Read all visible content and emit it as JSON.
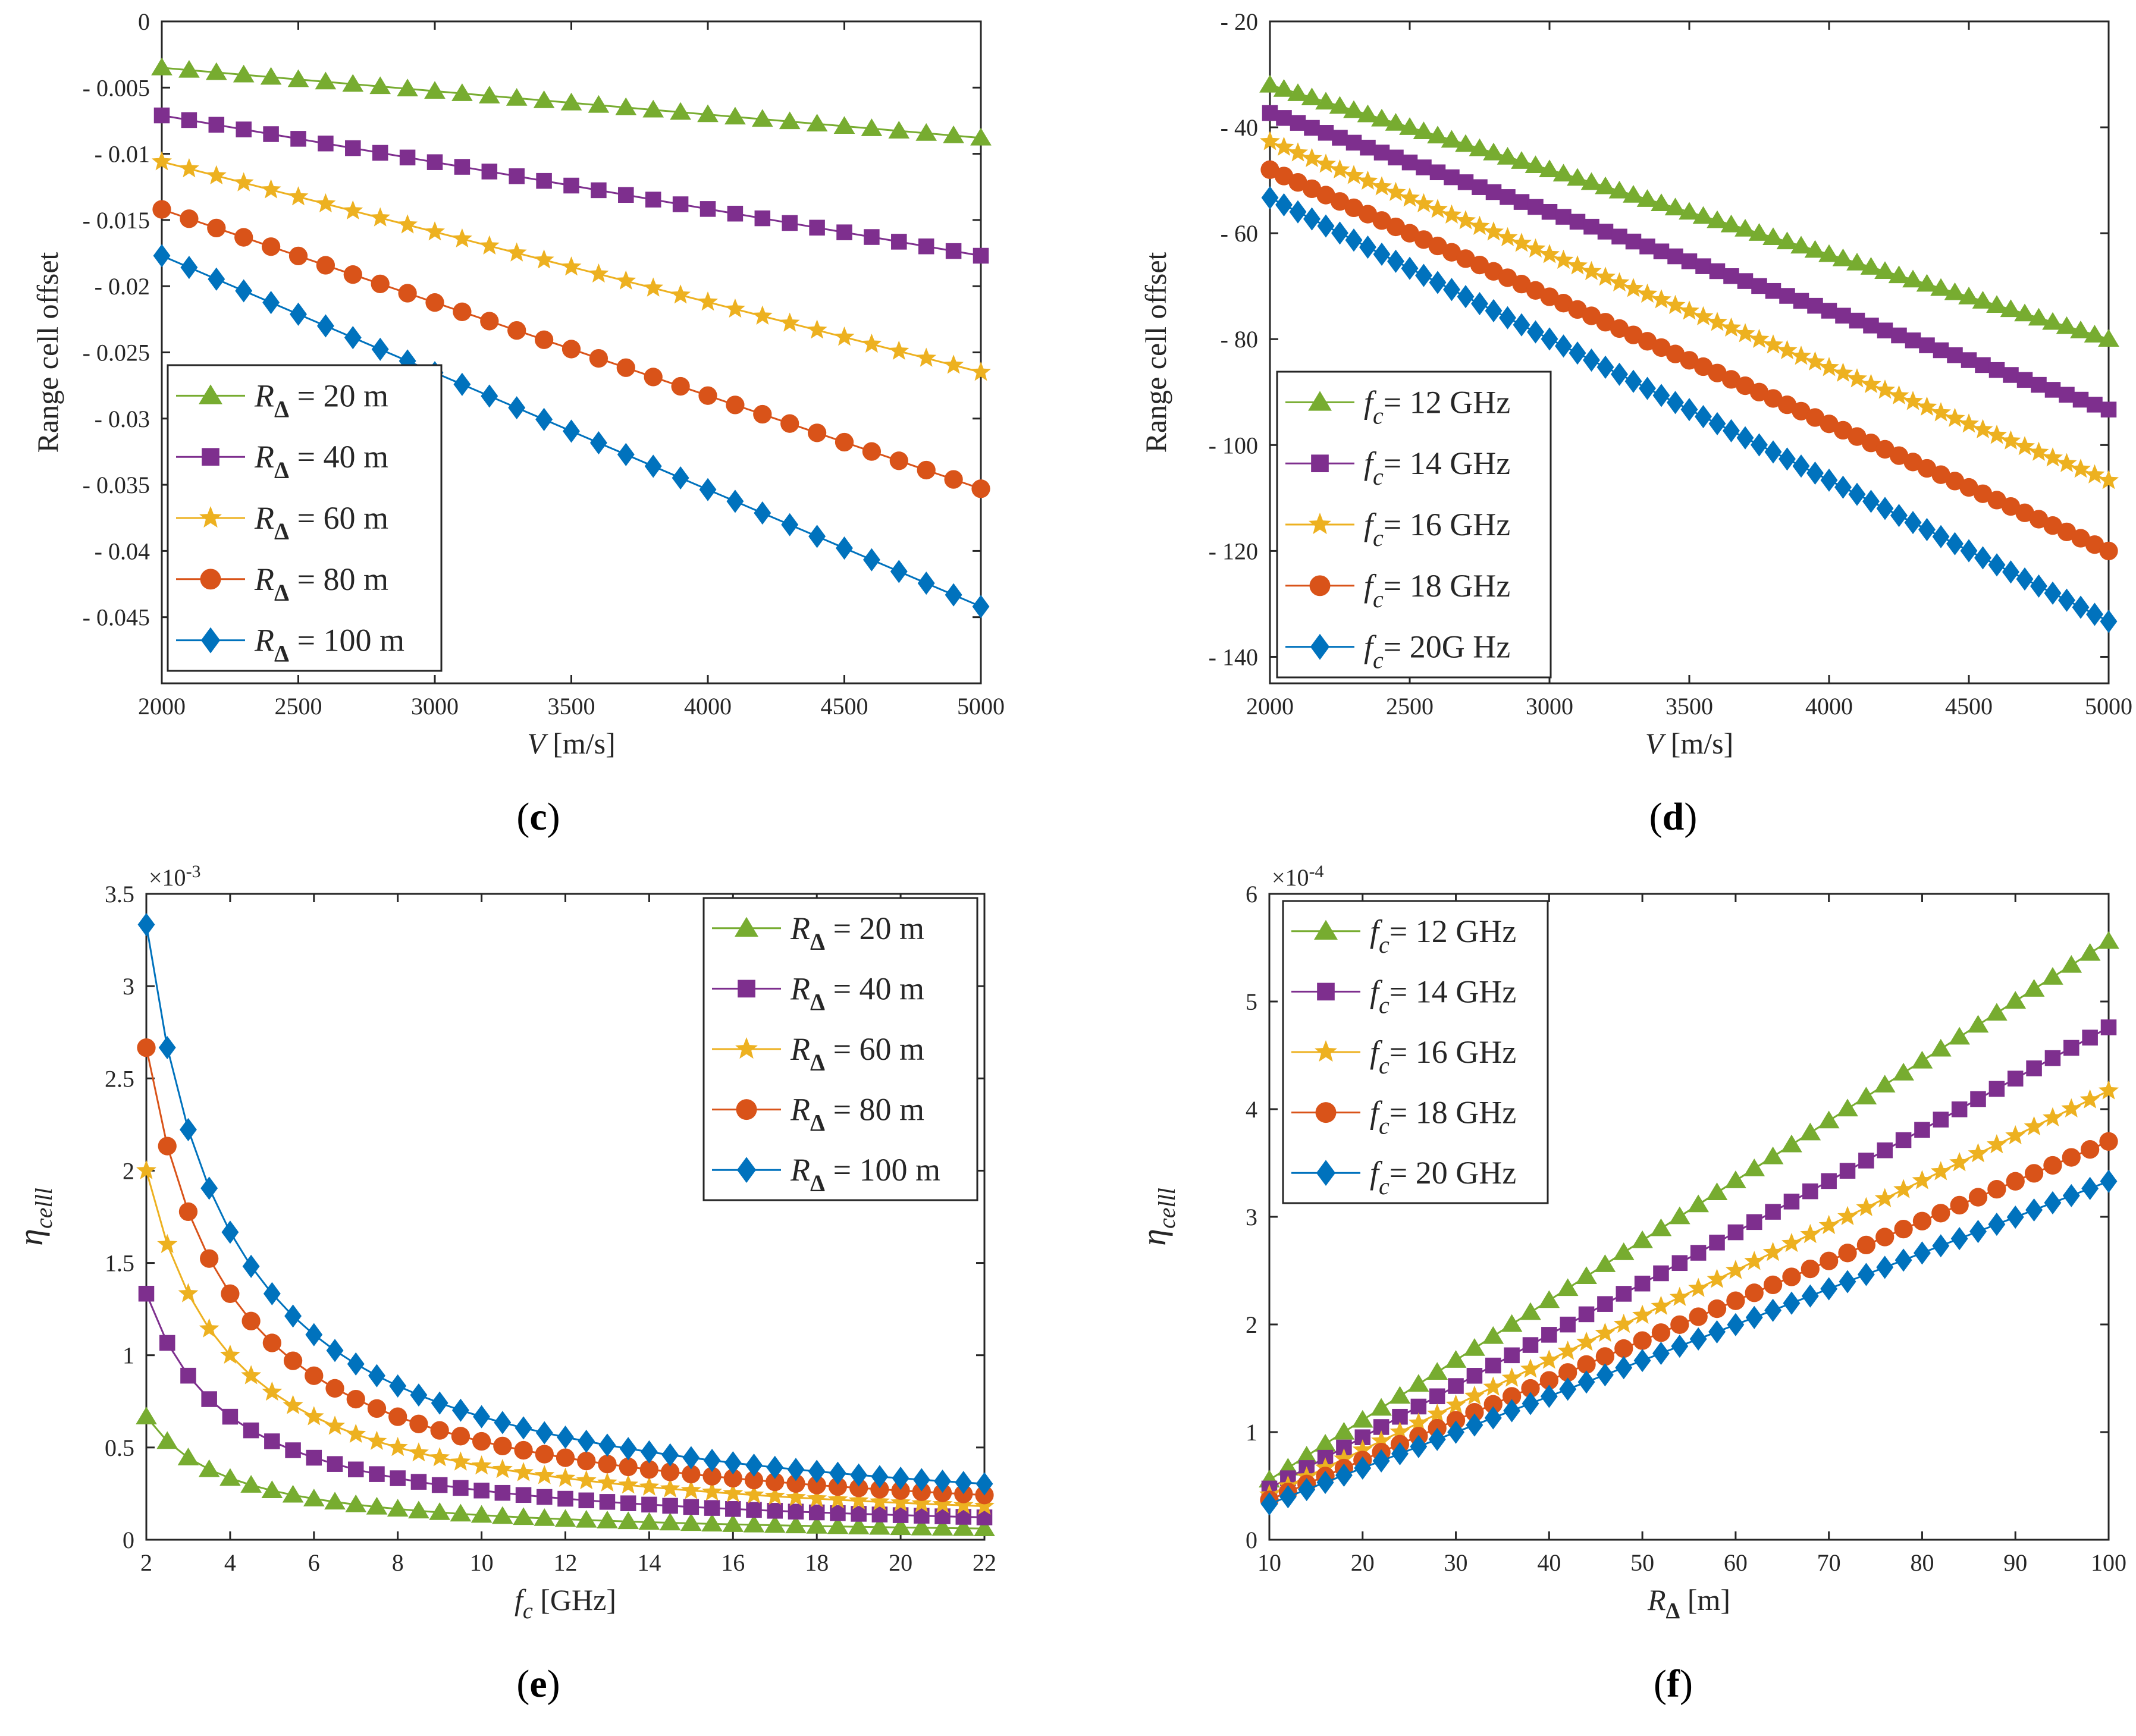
{
  "colors": {
    "green": "#77ac30",
    "purple": "#7e2f8e",
    "yellow": "#edb120",
    "orange": "#d95319",
    "blue": "#0072bd",
    "axis": "#262626"
  },
  "chart_data": [
    {
      "id": "c",
      "type": "line",
      "panel_label": "c",
      "xlabel_var": "V",
      "xlabel_unit": " [m/s]",
      "ylabel": "Range cell offset",
      "xlim": [
        2000,
        5000
      ],
      "ylim": [
        -0.05,
        0
      ],
      "xticks": [
        2000,
        2500,
        3000,
        3500,
        4000,
        4500,
        5000
      ],
      "xtick_labels": [
        "2000",
        "2500",
        "3000",
        "3500",
        "4000",
        "4500",
        "5000"
      ],
      "yticks": [
        0,
        -0.005,
        -0.01,
        -0.015,
        -0.02,
        -0.025,
        -0.03,
        -0.035,
        -0.04,
        -0.045
      ],
      "ytick_labels": [
        "0",
        "- 0.005",
        "- 0.01",
        "- 0.015",
        "- 0.02",
        "- 0.025",
        "- 0.03",
        "- 0.035",
        "- 0.04",
        "- 0.045"
      ],
      "exponent": "",
      "x": {
        "start": 2000,
        "end": 5000,
        "count": 31
      },
      "legend": "lower-left",
      "series": [
        {
          "name": "R_Δ = 20 m",
          "lab_var": "R",
          "lab_sub": "Δ",
          "lab_rest": " = 20 m",
          "color": "green",
          "marker": "triangle",
          "curve": "linear",
          "start": -0.0035,
          "end": -0.0088
        },
        {
          "name": "R_Δ = 40 m",
          "lab_var": "R",
          "lab_sub": "Δ",
          "lab_rest": " = 40 m",
          "color": "purple",
          "marker": "square",
          "curve": "linear",
          "start": -0.0071,
          "end": -0.0177
        },
        {
          "name": "R_Δ = 60 m",
          "lab_var": "R",
          "lab_sub": "Δ",
          "lab_rest": " = 60 m",
          "color": "yellow",
          "marker": "star",
          "curve": "linear",
          "start": -0.0106,
          "end": -0.0265
        },
        {
          "name": "R_Δ = 80 m",
          "lab_var": "R",
          "lab_sub": "Δ",
          "lab_rest": " = 80 m",
          "color": "orange",
          "marker": "circle",
          "curve": "linear",
          "start": -0.0142,
          "end": -0.0353
        },
        {
          "name": "R_Δ = 100 m",
          "lab_var": "R",
          "lab_sub": "Δ",
          "lab_rest": " = 100 m",
          "color": "blue",
          "marker": "diamond",
          "curve": "linear",
          "start": -0.0177,
          "end": -0.0442
        }
      ]
    },
    {
      "id": "d",
      "type": "line",
      "panel_label": "d",
      "xlabel_var": "V",
      "xlabel_unit": " [m/s]",
      "ylabel": "Range cell offset",
      "xlim": [
        2000,
        5000
      ],
      "ylim": [
        -145,
        -20
      ],
      "xticks": [
        2000,
        2500,
        3000,
        3500,
        4000,
        4500,
        5000
      ],
      "xtick_labels": [
        "2000",
        "2500",
        "3000",
        "3500",
        "4000",
        "4500",
        "5000"
      ],
      "yticks": [
        -20,
        -40,
        -60,
        -80,
        -100,
        -120,
        -140
      ],
      "ytick_labels": [
        "- 20",
        "- 40",
        "- 60",
        "- 80",
        "- 100",
        "- 120",
        "- 140"
      ],
      "exponent": "",
      "x": {
        "start": 2000,
        "end": 5000,
        "count": 61
      },
      "legend": "lower-left",
      "series": [
        {
          "name": "f_c = 12 GHz",
          "lab_var": "f",
          "lab_sub": "c",
          "lab_rest": "= 12 GHz",
          "color": "green",
          "marker": "triangle",
          "curve": "linear",
          "start": -32,
          "end": -80
        },
        {
          "name": "f_c = 14 GHz",
          "lab_var": "f",
          "lab_sub": "c",
          "lab_rest": "= 14 GHz",
          "color": "purple",
          "marker": "square",
          "curve": "linear",
          "start": -37.3,
          "end": -93.3
        },
        {
          "name": "f_c = 16 GHz",
          "lab_var": "f",
          "lab_sub": "c",
          "lab_rest": "= 16 GHz",
          "color": "yellow",
          "marker": "star",
          "curve": "linear",
          "start": -42.7,
          "end": -106.7
        },
        {
          "name": "f_c = 18 GHz",
          "lab_var": "f",
          "lab_sub": "c",
          "lab_rest": "= 18 GHz",
          "color": "orange",
          "marker": "circle",
          "curve": "linear",
          "start": -48,
          "end": -120
        },
        {
          "name": "f_c = 20G Hz",
          "lab_var": "f",
          "lab_sub": "c",
          "lab_rest": "= 20G Hz",
          "color": "blue",
          "marker": "diamond",
          "curve": "linear",
          "start": -53.3,
          "end": -133.3
        }
      ]
    },
    {
      "id": "e",
      "type": "line",
      "panel_label": "e",
      "xlabel_var": "f",
      "xlabel_sub": "c",
      "xlabel_unit": " [GHz]",
      "ylabel": "η",
      "ylabel_sub": "celll",
      "xlim": [
        2,
        22
      ],
      "ylim": [
        0,
        3.5
      ],
      "xticks": [
        2,
        4,
        6,
        8,
        10,
        12,
        14,
        16,
        18,
        20,
        22
      ],
      "xtick_labels": [
        "2",
        "4",
        "6",
        "8",
        "10",
        "12",
        "14",
        "16",
        "18",
        "20",
        "22"
      ],
      "yticks": [
        0,
        0.5,
        1,
        1.5,
        2,
        2.5,
        3,
        3.5
      ],
      "ytick_labels": [
        "0",
        "0.5",
        "1",
        "1.5",
        "2",
        "2.5",
        "3",
        "3.5"
      ],
      "exponent": "×10",
      "exponent_power": "-3",
      "x": {
        "start": 2,
        "end": 22,
        "count": 41
      },
      "legend": "top-right",
      "series": [
        {
          "name": "R_Δ = 20 m",
          "lab_var": "R",
          "lab_sub": "Δ",
          "lab_rest": " = 20 m",
          "color": "green",
          "marker": "triangle",
          "curve": "inverse",
          "k": 1.333
        },
        {
          "name": "R_Δ = 40 m",
          "lab_var": "R",
          "lab_sub": "Δ",
          "lab_rest": " = 40 m",
          "color": "purple",
          "marker": "square",
          "curve": "inverse",
          "k": 2.667
        },
        {
          "name": "R_Δ = 60 m",
          "lab_var": "R",
          "lab_sub": "Δ",
          "lab_rest": " = 60 m",
          "color": "yellow",
          "marker": "star",
          "curve": "inverse",
          "k": 4.0
        },
        {
          "name": "R_Δ = 80 m",
          "lab_var": "R",
          "lab_sub": "Δ",
          "lab_rest": " = 80 m",
          "color": "orange",
          "marker": "circle",
          "curve": "inverse",
          "k": 5.333
        },
        {
          "name": "R_Δ = 100 m",
          "lab_var": "R",
          "lab_sub": "Δ",
          "lab_rest": " = 100 m",
          "color": "blue",
          "marker": "diamond",
          "curve": "inverse",
          "k": 6.667
        }
      ]
    },
    {
      "id": "f",
      "type": "line",
      "panel_label": "f",
      "xlabel_var": "R",
      "xlabel_sub": "Δ",
      "xlabel_unit": " [m]",
      "ylabel": "η",
      "ylabel_sub": "celll",
      "xlim": [
        10,
        100
      ],
      "ylim": [
        0,
        6
      ],
      "xticks": [
        10,
        20,
        30,
        40,
        50,
        60,
        70,
        80,
        90,
        100
      ],
      "xtick_labels": [
        "10",
        "20",
        "30",
        "40",
        "50",
        "60",
        "70",
        "80",
        "90",
        "100"
      ],
      "yticks": [
        0,
        1,
        2,
        3,
        4,
        5,
        6
      ],
      "ytick_labels": [
        "0",
        "1",
        "2",
        "3",
        "4",
        "5",
        "6"
      ],
      "exponent": "×10",
      "exponent_power": "-4",
      "x": {
        "start": 10,
        "end": 100,
        "count": 46
      },
      "legend": "top-left",
      "series": [
        {
          "name": "f_c = 12 GHz",
          "lab_var": "f",
          "lab_sub": "c",
          "lab_rest": "= 12 GHz",
          "color": "green",
          "marker": "triangle",
          "curve": "linear",
          "start": 0.556,
          "end": 5.56
        },
        {
          "name": "f_c = 14 GHz",
          "lab_var": "f",
          "lab_sub": "c",
          "lab_rest": "= 14 GHz",
          "color": "purple",
          "marker": "square",
          "curve": "linear",
          "start": 0.476,
          "end": 4.76
        },
        {
          "name": "f_c = 16 GHz",
          "lab_var": "f",
          "lab_sub": "c",
          "lab_rest": "= 16 GHz",
          "color": "yellow",
          "marker": "star",
          "curve": "linear",
          "start": 0.417,
          "end": 4.17
        },
        {
          "name": "f_c = 18 GHz",
          "lab_var": "f",
          "lab_sub": "c",
          "lab_rest": "= 18 GHz",
          "color": "orange",
          "marker": "circle",
          "curve": "linear",
          "start": 0.37,
          "end": 3.7
        },
        {
          "name": "f_c = 20 GHz",
          "lab_var": "f",
          "lab_sub": "c",
          "lab_rest": "= 20 GHz",
          "color": "blue",
          "marker": "diamond",
          "curve": "linear",
          "start": 0.333,
          "end": 3.33
        }
      ]
    }
  ]
}
